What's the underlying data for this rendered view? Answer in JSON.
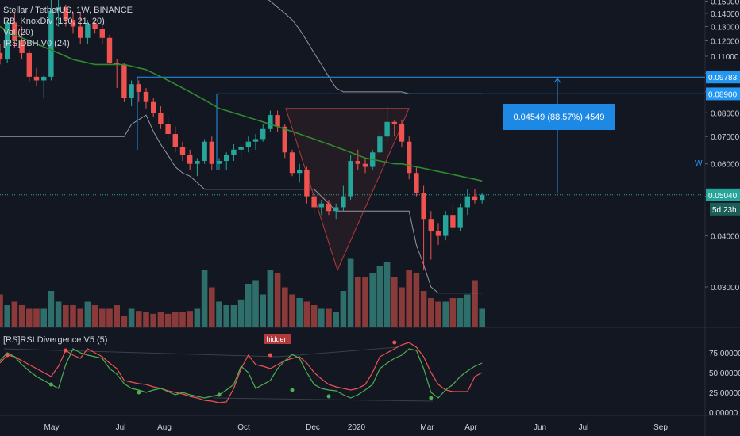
{
  "legend": {
    "title": "Stellar / TetherUS, 1W, BINANCE",
    "ind1": "RB_KnoxDiv (150, 21, 20)",
    "ind2": "Vol (20)",
    "ind3": "[RS]DBH.V0 (24)"
  },
  "measure_label": "0.04549 (88.57%) 4549",
  "w_label": "W",
  "rsi_title": "[RS]RSI Divergence V5 (5)",
  "hidden_label": "hidden",
  "countdown": "5d 23h",
  "colors": {
    "up": "#26a69a",
    "down": "#ef5350",
    "volume_up": "#2f6f6b",
    "volume_down": "#8b3a3a",
    "ma": "#2e8b2e",
    "band": "#9598a1",
    "hline": "#2196f3",
    "rsi_red": "#ef5350",
    "rsi_green": "#4caf50",
    "background": "#131722",
    "grid": "#2a2e39"
  },
  "chart_data": [
    {
      "type": "candlestick",
      "title": "Stellar / TetherUS, 1W, BINANCE",
      "x_labels": [
        "May",
        "Jul",
        "Aug",
        "Oct",
        "Dec",
        "2020",
        "Mar",
        "Apr",
        "Jun",
        "Jul",
        "Sep"
      ],
      "y_ticks": [
        "0.15000",
        "0.14000",
        "0.13000",
        "0.12000",
        "0.11000",
        "0.10000",
        "0.09000",
        "0.08000",
        "0.07000",
        "0.06000",
        "0.05000",
        "0.04000",
        "0.03000"
      ],
      "ylim": [
        0.024,
        0.151
      ],
      "scale": "log",
      "price_labels": {
        "level_1": "0.09783",
        "level_2": "0.08900",
        "last": "0.05040"
      },
      "ohlc": [
        [
          0.112,
          0.118,
          0.105,
          0.108
        ],
        [
          0.108,
          0.135,
          0.106,
          0.133
        ],
        [
          0.133,
          0.14,
          0.115,
          0.12
        ],
        [
          0.12,
          0.13,
          0.108,
          0.112
        ],
        [
          0.112,
          0.114,
          0.095,
          0.098
        ],
        [
          0.098,
          0.103,
          0.093,
          0.096
        ],
        [
          0.096,
          0.099,
          0.087,
          0.098
        ],
        [
          0.098,
          0.152,
          0.096,
          0.142
        ],
        [
          0.142,
          0.152,
          0.13,
          0.145
        ],
        [
          0.145,
          0.147,
          0.13,
          0.135
        ],
        [
          0.135,
          0.141,
          0.125,
          0.13
        ],
        [
          0.13,
          0.14,
          0.118,
          0.122
        ],
        [
          0.122,
          0.135,
          0.118,
          0.132
        ],
        [
          0.132,
          0.135,
          0.125,
          0.128
        ],
        [
          0.128,
          0.13,
          0.118,
          0.122
        ],
        [
          0.122,
          0.124,
          0.105,
          0.106
        ],
        [
          0.106,
          0.108,
          0.092,
          0.105
        ],
        [
          0.105,
          0.106,
          0.085,
          0.087
        ],
        [
          0.087,
          0.096,
          0.083,
          0.094
        ],
        [
          0.094,
          0.096,
          0.085,
          0.09
        ],
        [
          0.09,
          0.092,
          0.082,
          0.085
        ],
        [
          0.085,
          0.087,
          0.078,
          0.08
        ],
        [
          0.08,
          0.083,
          0.073,
          0.075
        ],
        [
          0.075,
          0.078,
          0.069,
          0.071
        ],
        [
          0.071,
          0.074,
          0.064,
          0.066
        ],
        [
          0.066,
          0.068,
          0.061,
          0.063
        ],
        [
          0.063,
          0.065,
          0.058,
          0.06
        ],
        [
          0.06,
          0.062,
          0.056,
          0.061
        ],
        [
          0.061,
          0.069,
          0.06,
          0.068
        ],
        [
          0.068,
          0.07,
          0.058,
          0.06
        ],
        [
          0.06,
          0.062,
          0.058,
          0.061
        ],
        [
          0.061,
          0.064,
          0.058,
          0.063
        ],
        [
          0.063,
          0.067,
          0.061,
          0.065
        ],
        [
          0.065,
          0.067,
          0.062,
          0.066
        ],
        [
          0.066,
          0.07,
          0.064,
          0.068
        ],
        [
          0.068,
          0.071,
          0.065,
          0.069
        ],
        [
          0.069,
          0.075,
          0.068,
          0.073
        ],
        [
          0.073,
          0.081,
          0.072,
          0.079
        ],
        [
          0.079,
          0.081,
          0.072,
          0.074
        ],
        [
          0.074,
          0.075,
          0.062,
          0.064
        ],
        [
          0.064,
          0.065,
          0.056,
          0.057
        ],
        [
          0.057,
          0.06,
          0.054,
          0.058
        ],
        [
          0.058,
          0.059,
          0.048,
          0.05
        ],
        [
          0.05,
          0.052,
          0.045,
          0.047
        ],
        [
          0.047,
          0.049,
          0.045,
          0.048
        ],
        [
          0.048,
          0.049,
          0.045,
          0.046
        ],
        [
          0.046,
          0.048,
          0.044,
          0.047
        ],
        [
          0.047,
          0.053,
          0.046,
          0.05
        ],
        [
          0.05,
          0.063,
          0.049,
          0.061
        ],
        [
          0.061,
          0.065,
          0.058,
          0.06
        ],
        [
          0.06,
          0.062,
          0.057,
          0.059
        ],
        [
          0.059,
          0.065,
          0.058,
          0.064
        ],
        [
          0.064,
          0.072,
          0.063,
          0.07
        ],
        [
          0.07,
          0.083,
          0.068,
          0.076
        ],
        [
          0.076,
          0.077,
          0.07,
          0.075
        ],
        [
          0.075,
          0.077,
          0.066,
          0.068
        ],
        [
          0.068,
          0.07,
          0.055,
          0.057
        ],
        [
          0.057,
          0.059,
          0.05,
          0.051
        ],
        [
          0.051,
          0.053,
          0.033,
          0.044
        ],
        [
          0.044,
          0.046,
          0.035,
          0.041
        ],
        [
          0.041,
          0.043,
          0.038,
          0.04
        ],
        [
          0.04,
          0.046,
          0.039,
          0.045
        ],
        [
          0.045,
          0.048,
          0.041,
          0.042
        ],
        [
          0.042,
          0.048,
          0.041,
          0.047
        ],
        [
          0.047,
          0.052,
          0.045,
          0.05
        ],
        [
          0.05,
          0.052,
          0.048,
          0.049
        ],
        [
          0.049,
          0.051,
          0.048,
          0.0504
        ]
      ],
      "volume_scale": [
        0.45,
        0.3,
        0.35,
        0.3,
        0.25,
        0.25,
        0.25,
        0.5,
        0.35,
        0.3,
        0.3,
        0.25,
        0.35,
        0.3,
        0.25,
        0.25,
        0.3,
        0.15,
        0.25,
        0.22,
        0.2,
        0.18,
        0.2,
        0.18,
        0.2,
        0.2,
        0.22,
        0.25,
        0.8,
        0.55,
        0.35,
        0.3,
        0.3,
        0.38,
        0.6,
        0.65,
        0.45,
        0.8,
        0.75,
        0.55,
        0.45,
        0.4,
        0.35,
        0.3,
        0.25,
        0.25,
        0.2,
        0.5,
        0.95,
        0.7,
        0.7,
        0.75,
        0.85,
        0.9,
        0.7,
        0.55,
        0.8,
        0.75,
        0.5,
        0.4,
        0.35,
        0.35,
        0.4,
        0.4,
        0.45,
        0.65,
        0.25
      ],
      "ma": [
        0.13,
        0.127,
        0.124,
        0.122,
        0.12,
        0.118,
        0.116,
        0.114,
        0.112,
        0.11,
        0.108,
        0.107,
        0.106,
        0.105,
        0.105,
        0.105,
        0.105,
        0.105,
        0.104,
        0.103,
        0.102,
        0.1,
        0.098,
        0.096,
        0.094,
        0.092,
        0.09,
        0.088,
        0.086,
        0.084,
        0.082,
        0.081,
        0.08,
        0.079,
        0.078,
        0.077,
        0.076,
        0.075,
        0.074,
        0.073,
        0.072,
        0.071,
        0.07,
        0.069,
        0.068,
        0.067,
        0.066,
        0.065,
        0.064,
        0.063,
        0.062,
        0.0615,
        0.061,
        0.0605,
        0.06,
        0.06,
        0.0595,
        0.059,
        0.0585,
        0.058,
        0.0575,
        0.057,
        0.0565,
        0.056,
        0.0555,
        0.055,
        0.0545
      ],
      "band_upper": [
        0.2,
        0.2,
        0.2,
        0.2,
        0.2,
        0.2,
        0.2,
        0.2,
        0.2,
        0.2,
        0.2,
        0.2,
        0.2,
        0.2,
        0.2,
        0.2,
        0.2,
        0.2,
        0.2,
        0.2,
        0.2,
        0.2,
        0.2,
        0.2,
        0.2,
        0.2,
        0.2,
        0.2,
        0.2,
        0.2,
        0.2,
        0.2,
        0.2,
        0.2,
        0.2,
        0.16,
        0.155,
        0.15,
        0.145,
        0.14,
        0.135,
        0.128,
        0.12,
        0.112,
        0.105,
        0.098,
        0.092,
        0.09,
        0.09,
        0.09,
        0.09,
        0.09,
        0.09,
        0.09,
        0.09,
        0.09,
        0.089,
        0.089,
        0.089,
        0.089,
        0.089,
        0.089,
        0.089,
        0.089,
        0.089,
        0.089,
        0.089
      ],
      "band_lower": [
        0.07,
        0.07,
        0.07,
        0.07,
        0.07,
        0.07,
        0.07,
        0.07,
        0.07,
        0.07,
        0.07,
        0.07,
        0.07,
        0.07,
        0.07,
        0.07,
        0.07,
        0.07,
        0.075,
        0.077,
        0.079,
        0.072,
        0.067,
        0.063,
        0.059,
        0.057,
        0.056,
        0.054,
        0.052,
        0.052,
        0.052,
        0.052,
        0.052,
        0.052,
        0.052,
        0.052,
        0.052,
        0.052,
        0.052,
        0.052,
        0.052,
        0.052,
        0.052,
        0.052,
        0.05,
        0.048,
        0.046,
        0.046,
        0.046,
        0.046,
        0.046,
        0.046,
        0.046,
        0.046,
        0.046,
        0.046,
        0.046,
        0.038,
        0.034,
        0.03,
        0.029,
        0.029,
        0.029,
        0.029,
        0.029,
        0.029,
        0.029
      ],
      "levels": [
        0.09783,
        0.089,
        0.0504
      ],
      "measure_text": "0.04549 (88.57%) 4549"
    },
    {
      "type": "line",
      "title": "[RS]RSI Divergence V5 (5)",
      "y_ticks": [
        "75.00000",
        "50.00000",
        "25.00000",
        "0.00000"
      ],
      "ylim": [
        0,
        100
      ],
      "series": [
        {
          "color": "red",
          "values": [
            62,
            72,
            70,
            65,
            60,
            55,
            50,
            45,
            58,
            78,
            72,
            68,
            80,
            75,
            70,
            62,
            55,
            40,
            38,
            36,
            35,
            32,
            30,
            27,
            25,
            23,
            20,
            18,
            15,
            14,
            12,
            13,
            30,
            55,
            72,
            60,
            58,
            55,
            60,
            65,
            68,
            70,
            62,
            50,
            42,
            35,
            32,
            30,
            28,
            30,
            35,
            50,
            70,
            75,
            80,
            85,
            88,
            82,
            70,
            50,
            35,
            28,
            26,
            26,
            26,
            45,
            50
          ]
        },
        {
          "color": "green",
          "values": [
            65,
            75,
            70,
            60,
            52,
            45,
            40,
            35,
            30,
            60,
            80,
            75,
            72,
            70,
            68,
            55,
            48,
            36,
            30,
            28,
            25,
            28,
            30,
            26,
            22,
            25,
            22,
            20,
            18,
            20,
            22,
            28,
            35,
            58,
            50,
            30,
            35,
            40,
            55,
            65,
            73,
            68,
            50,
            35,
            30,
            28,
            27,
            22,
            18,
            22,
            28,
            35,
            55,
            62,
            68,
            72,
            80,
            78,
            55,
            25,
            18,
            28,
            35,
            45,
            52,
            58,
            62
          ]
        }
      ]
    }
  ]
}
